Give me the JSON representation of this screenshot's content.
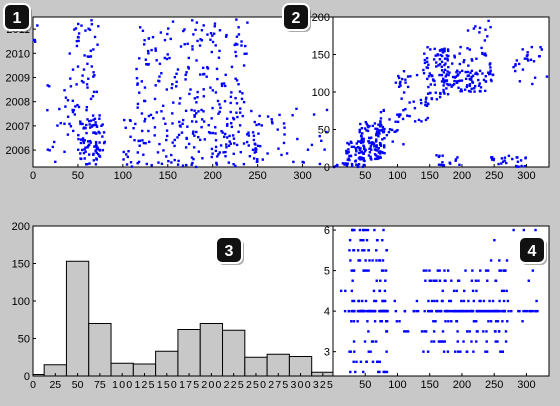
{
  "badges": [
    "1",
    "2",
    "3",
    "4"
  ],
  "chart_data": [
    {
      "id": "1",
      "type": "scatter",
      "xlim": [
        0,
        335
      ],
      "ylim": [
        2005.3,
        2011.5
      ],
      "xticks": [
        0,
        50,
        100,
        150,
        200,
        250,
        300
      ],
      "yticks": [
        2006,
        2007,
        2008,
        2009,
        2010,
        2011
      ],
      "marker_color": "#0000ff",
      "clusters": [
        {
          "xr": [
            50,
            80
          ],
          "yr": [
            2005.4,
            2007.3
          ],
          "n": 90
        },
        {
          "xr": [
            40,
            75
          ],
          "yr": [
            2007.3,
            2011.4
          ],
          "n": 55
        },
        {
          "xr": [
            15,
            45
          ],
          "yr": [
            2005.5,
            2008.7
          ],
          "n": 25
        },
        {
          "xr": [
            100,
            160
          ],
          "yr": [
            2005.3,
            2007.6
          ],
          "n": 60
        },
        {
          "xr": [
            115,
            240
          ],
          "yr": [
            2007.5,
            2011.4
          ],
          "n": 170
        },
        {
          "xr": [
            160,
            255
          ],
          "yr": [
            2005.3,
            2007.5
          ],
          "n": 120
        },
        {
          "xr": [
            240,
            330
          ],
          "yr": [
            2005.3,
            2007.8
          ],
          "n": 35
        },
        {
          "xr": [
            0,
            5
          ],
          "yr": [
            2009.8,
            2011.5
          ],
          "n": 4
        }
      ]
    },
    {
      "id": "2",
      "type": "scatter",
      "xlim": [
        0,
        335
      ],
      "ylim": [
        0,
        200
      ],
      "xticks": [
        0,
        50,
        100,
        150,
        200,
        250,
        300
      ],
      "yticks": [
        0,
        50,
        100,
        150,
        200
      ],
      "marker_color": "#0000ff",
      "clusters": [
        {
          "xr": [
            20,
            50
          ],
          "yr": [
            0,
            35
          ],
          "n": 50
        },
        {
          "xr": [
            40,
            80
          ],
          "yr": [
            10,
            60
          ],
          "n": 120
        },
        {
          "xr": [
            60,
            110
          ],
          "yr": [
            30,
            80
          ],
          "n": 20
        },
        {
          "xr": [
            95,
            150
          ],
          "yr": [
            60,
            130
          ],
          "n": 45
        },
        {
          "xr": [
            140,
            180
          ],
          "yr": [
            90,
            160
          ],
          "n": 60
        },
        {
          "xr": [
            170,
            250
          ],
          "yr": [
            100,
            130
          ],
          "n": 90
        },
        {
          "xr": [
            160,
            245
          ],
          "yr": [
            130,
            160
          ],
          "n": 40
        },
        {
          "xr": [
            200,
            250
          ],
          "yr": [
            160,
            200
          ],
          "n": 10
        },
        {
          "xr": [
            160,
            200
          ],
          "yr": [
            0,
            25
          ],
          "n": 15
        },
        {
          "xr": [
            240,
            300
          ],
          "yr": [
            0,
            15
          ],
          "n": 25
        },
        {
          "xr": [
            280,
            335
          ],
          "yr": [
            110,
            160
          ],
          "n": 25
        },
        {
          "xr": [
            0,
            30
          ],
          "yr": [
            0,
            5
          ],
          "n": 10
        }
      ]
    },
    {
      "id": "3",
      "type": "bar",
      "categories": [
        "0",
        "25",
        "50",
        "75",
        "100",
        "125",
        "150",
        "175",
        "200",
        "225",
        "250",
        "275",
        "300",
        "325"
      ],
      "values": [
        2,
        15,
        153,
        70,
        17,
        16,
        33,
        62,
        70,
        61,
        25,
        29,
        26,
        5
      ],
      "ylim": [
        0,
        200
      ],
      "yticks": [
        0,
        50,
        100,
        150,
        200
      ],
      "bar_color": "#c8c8c8",
      "edge_color": "#000000"
    },
    {
      "id": "4",
      "type": "scatter",
      "xlim": [
        0,
        335
      ],
      "ylim": [
        2.4,
        6.1
      ],
      "xticks": [
        0,
        50,
        100,
        150,
        200,
        250,
        300
      ],
      "yticks": [
        3,
        4,
        5,
        6
      ],
      "marker_color": "#0000ff",
      "levels": [
        2.5,
        2.75,
        3.0,
        3.25,
        3.5,
        3.75,
        4.0,
        4.25,
        4.5,
        4.75,
        5.0,
        5.25,
        5.5,
        5.75,
        6.0
      ],
      "groups": [
        {
          "xr": [
            25,
            85
          ],
          "lr": [
            2.5,
            6.0
          ],
          "n": 190
        },
        {
          "xr": [
            95,
            140
          ],
          "lr": [
            3.5,
            4.25
          ],
          "n": 15
        },
        {
          "xr": [
            140,
            270
          ],
          "lr": [
            3.0,
            5.0
          ],
          "n": 220
        },
        {
          "xr": [
            245,
            320
          ],
          "lr": [
            3.25,
            6.0
          ],
          "n": 40
        },
        {
          "xr": [
            10,
            30
          ],
          "lr": [
            4.0,
            4.5
          ],
          "n": 4
        }
      ]
    }
  ]
}
